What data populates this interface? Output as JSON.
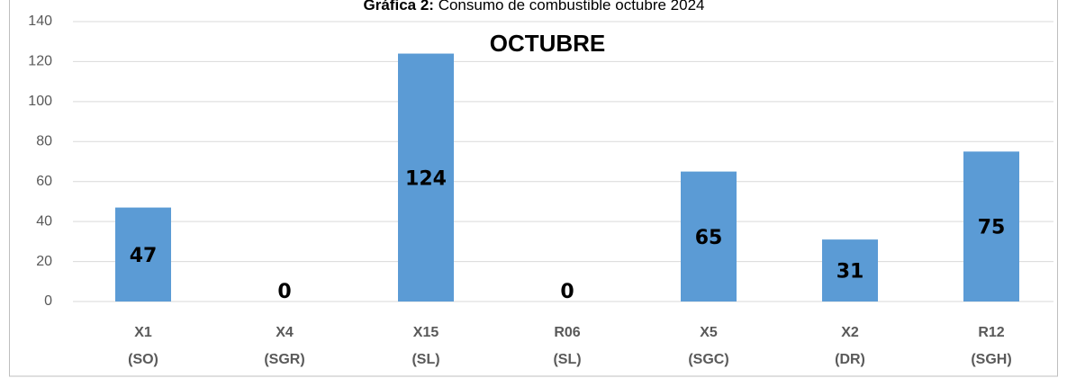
{
  "chart_data": {
    "type": "bar",
    "title_label": "Gráfica 2:",
    "title": "Consumo de combustible octubre 2024",
    "subtitle": "OCTUBRE",
    "categories": [
      [
        "X1",
        "(SO)"
      ],
      [
        "X4",
        "(SGR)"
      ],
      [
        "X15",
        "(SL)"
      ],
      [
        "R06",
        "(SL)"
      ],
      [
        "X5",
        "(SGC)"
      ],
      [
        "X2",
        "(DR)"
      ],
      [
        "R12",
        "(SGH)"
      ]
    ],
    "values": [
      47,
      0,
      124,
      0,
      65,
      31,
      75
    ],
    "color": "#5b9bd5",
    "ylim": [
      0,
      140
    ],
    "yticks": [
      0,
      20,
      40,
      60,
      80,
      100,
      120,
      140
    ],
    "grid": true
  }
}
